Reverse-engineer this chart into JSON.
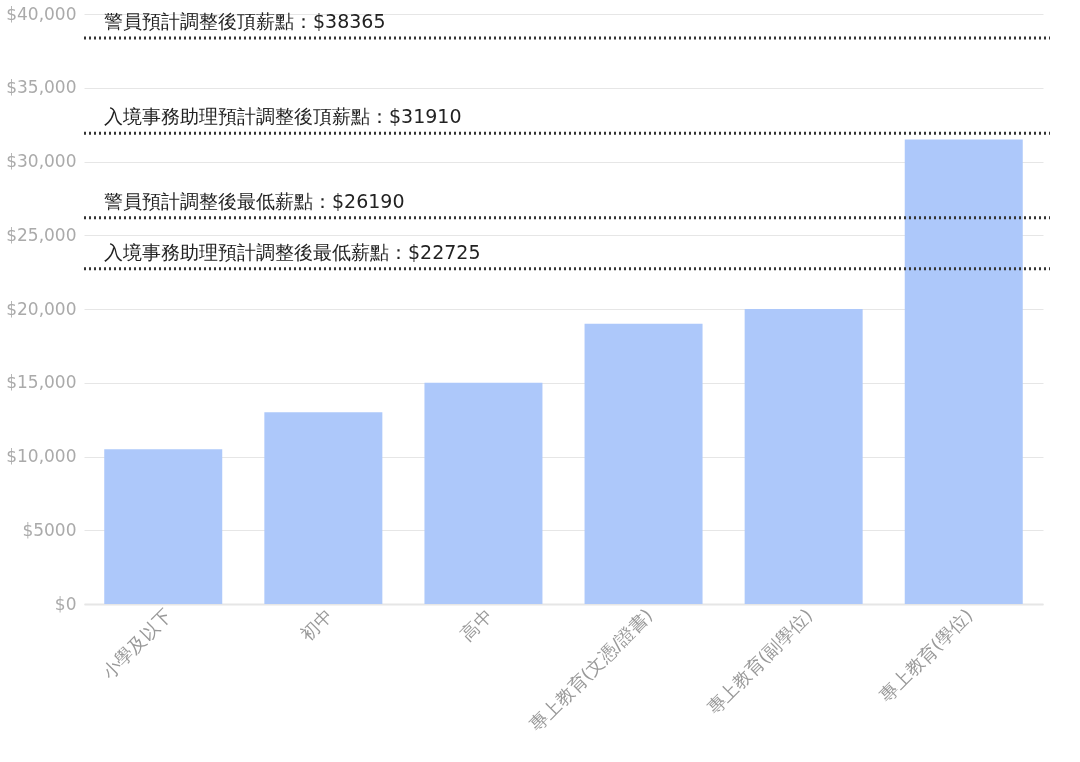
{
  "chart_data": {
    "type": "bar",
    "categories": [
      "小學及以下",
      "初中",
      "高中",
      "專上教育(文憑/證書)",
      "專上教育(副學位)",
      "專上教育(學位)"
    ],
    "values": [
      10500,
      13000,
      15000,
      19000,
      20000,
      31500
    ],
    "color": "#adc8fa",
    "ylim": [
      0,
      40000
    ],
    "yticks": [
      {
        "value": 0,
        "label": "$0"
      },
      {
        "value": 5000,
        "label": "$5000"
      },
      {
        "value": 10000,
        "label": "$10,000"
      },
      {
        "value": 15000,
        "label": "$15,000"
      },
      {
        "value": 20000,
        "label": "$20,000"
      },
      {
        "value": 25000,
        "label": "$25,000"
      },
      {
        "value": 30000,
        "label": "$30,000"
      },
      {
        "value": 35000,
        "label": "$35,000"
      },
      {
        "value": 40000,
        "label": "$40,000"
      }
    ],
    "grid": "y",
    "ref_lines": [
      {
        "axis": "y",
        "value": 38365,
        "label": "警員預計調整後頂薪點：$38365",
        "color": "#333333",
        "line_style": "dotted"
      },
      {
        "axis": "y",
        "value": 31910,
        "label": "入境事務助理預計調整後頂薪點：$31910",
        "color": "#333333",
        "line_style": "dotted"
      },
      {
        "axis": "y",
        "value": 26190,
        "label": "警員預計調整後最低薪點：$26190",
        "color": "#333333",
        "line_style": "dotted"
      },
      {
        "axis": "y",
        "value": 22725,
        "label": "入境事務助理預計調整後最低薪點：$22725",
        "color": "#333333",
        "line_style": "dotted"
      }
    ]
  }
}
